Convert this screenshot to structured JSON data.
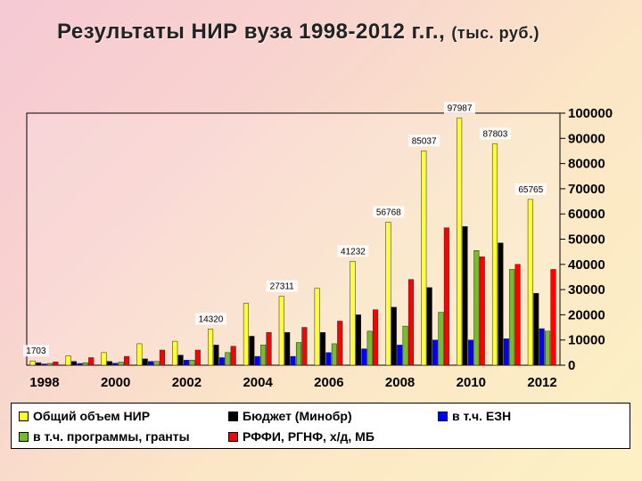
{
  "title": "Результаты НИР вуза  1998-2012 г.г.,",
  "title_unit": "(тыс. руб.)",
  "chart_data": {
    "type": "bar",
    "categories": [
      "1998",
      "1999",
      "2000",
      "2001",
      "2002",
      "2003",
      "2004",
      "2005",
      "2006",
      "2007",
      "2008",
      "2009",
      "2010",
      "2011",
      "2012"
    ],
    "x_tick_labels": [
      "1998",
      "",
      "2000",
      "",
      "2002",
      "",
      "2004",
      "",
      "2006",
      "",
      "2008",
      "",
      "2010",
      "",
      "2012"
    ],
    "ylim": [
      0,
      100000
    ],
    "y_ticks": [
      0,
      10000,
      20000,
      30000,
      40000,
      50000,
      60000,
      70000,
      80000,
      90000,
      100000
    ],
    "y_axis_position": "right",
    "grid": false,
    "legend_position": "bottom",
    "series": [
      {
        "name": "Общий объем НИР",
        "color": "#ffff33",
        "values": [
          1703,
          3700,
          5000,
          8500,
          9500,
          14320,
          24500,
          27311,
          30500,
          41232,
          56768,
          85037,
          97987,
          87803,
          65765
        ]
      },
      {
        "name": "Бюджет (Минобр)",
        "color": "#000000",
        "values": [
          1000,
          1500,
          1500,
          2500,
          4000,
          8000,
          11500,
          13000,
          13000,
          20000,
          23000,
          30800,
          55000,
          48500,
          28500
        ]
      },
      {
        "name": "в т.ч. ЕЗН",
        "color": "#0000ff",
        "values": [
          500,
          700,
          800,
          1500,
          2000,
          3000,
          3500,
          3500,
          5000,
          6500,
          8000,
          10000,
          10000,
          10500,
          14500
        ]
      },
      {
        "name": "в т.ч. программы, гранты",
        "color": "#77bb33",
        "values": [
          700,
          1000,
          1200,
          1500,
          2000,
          5000,
          8000,
          9000,
          8500,
          13500,
          15500,
          21000,
          45500,
          38000,
          13500
        ]
      },
      {
        "name": "РФФИ, РГНФ, х/д, МБ",
        "color": "#ff0000",
        "values": [
          1300,
          3000,
          3500,
          6000,
          6000,
          7500,
          13000,
          15000,
          17500,
          22000,
          34000,
          54500,
          43000,
          40000,
          38000
        ]
      }
    ],
    "data_labels": [
      {
        "index": 0,
        "text": "1703"
      },
      {
        "index": 5,
        "text": "14320"
      },
      {
        "index": 7,
        "text": "27311"
      },
      {
        "index": 9,
        "text": "41232"
      },
      {
        "index": 10,
        "text": "56768"
      },
      {
        "index": 11,
        "text": "85037"
      },
      {
        "index": 12,
        "text": "97987"
      },
      {
        "index": 13,
        "text": "87803"
      },
      {
        "index": 14,
        "text": "65765"
      }
    ]
  },
  "legend": [
    {
      "label": "Общий объем НИР",
      "color": "#ffff33"
    },
    {
      "label": "Бюджет (Минобр)",
      "color": "#000000"
    },
    {
      "label": "в т.ч. ЕЗН",
      "color": "#0000ff"
    },
    {
      "label": "в т.ч. программы, гранты",
      "color": "#77bb33"
    },
    {
      "label": "РФФИ, РГНФ, х/д, МБ",
      "color": "#ff0000"
    }
  ]
}
